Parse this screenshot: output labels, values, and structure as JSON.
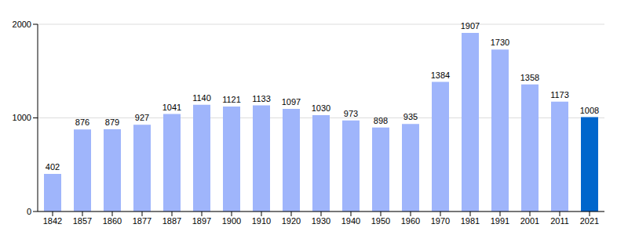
{
  "chart_data": {
    "type": "bar",
    "categories": [
      "1842",
      "1857",
      "1860",
      "1877",
      "1887",
      "1897",
      "1900",
      "1910",
      "1920",
      "1930",
      "1940",
      "1950",
      "1960",
      "1970",
      "1981",
      "1991",
      "2001",
      "2011",
      "2021"
    ],
    "values": [
      402,
      876,
      879,
      927,
      1041,
      1140,
      1121,
      1133,
      1097,
      1030,
      973,
      898,
      935,
      1384,
      1907,
      1730,
      1358,
      1173,
      1008
    ],
    "colors": [
      "#9fb5fb",
      "#9fb5fb",
      "#9fb5fb",
      "#9fb5fb",
      "#9fb5fb",
      "#9fb5fb",
      "#9fb5fb",
      "#9fb5fb",
      "#9fb5fb",
      "#9fb5fb",
      "#9fb5fb",
      "#9fb5fb",
      "#9fb5fb",
      "#9fb5fb",
      "#9fb5fb",
      "#9fb5fb",
      "#9fb5fb",
      "#9fb5fb",
      "#0066cc"
    ],
    "ylim": [
      0,
      2000
    ],
    "yticks": [
      0,
      1000,
      2000
    ],
    "grid": true,
    "data_labels": true
  }
}
